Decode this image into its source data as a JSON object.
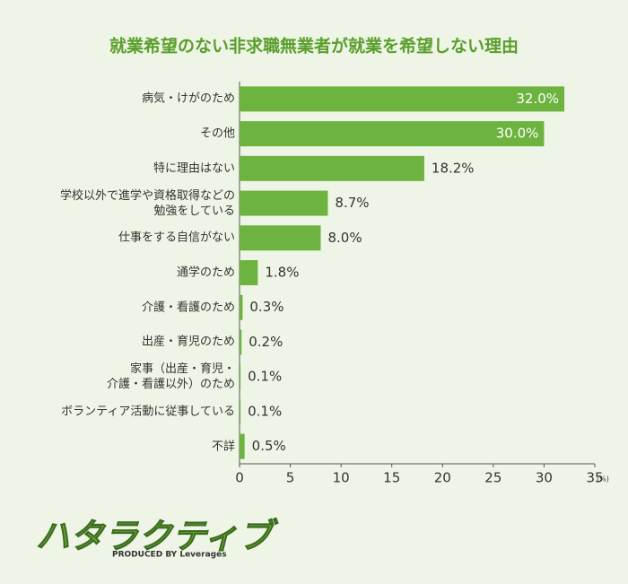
{
  "chart_data": {
    "type": "barh",
    "title": "就業希望のない非求職無業者が就業を希望しない理由",
    "categories": [
      "病気・けがのため",
      "その他",
      "特に理由はない",
      "学校以外で進学や資格取得などの\n勉強をしている",
      "仕事をする自信がない",
      "通学のため",
      "介護・看護のため",
      "出産・育児のため",
      "家事（出産・育児・\n介護・看護以外）のため",
      "ボランティア活動に従事している",
      "不詳"
    ],
    "values": [
      32.0,
      30.0,
      18.2,
      8.7,
      8.0,
      1.8,
      0.3,
      0.2,
      0.1,
      0.1,
      0.5
    ],
    "value_labels": [
      "32.0%",
      "30.0%",
      "18.2%",
      "8.7%",
      "8.0%",
      "1.8%",
      "0.3%",
      "0.2%",
      "0.1%",
      "0.1%",
      "0.5%"
    ],
    "color": "#6db33f",
    "xlim": [
      0,
      35
    ],
    "xticks": [
      0,
      5,
      10,
      15,
      20,
      25,
      30,
      35
    ],
    "x_unit": "(%)"
  },
  "logo": {
    "name": "ハタラクティブ",
    "tagline": "PRODUCED BY Leverages"
  }
}
